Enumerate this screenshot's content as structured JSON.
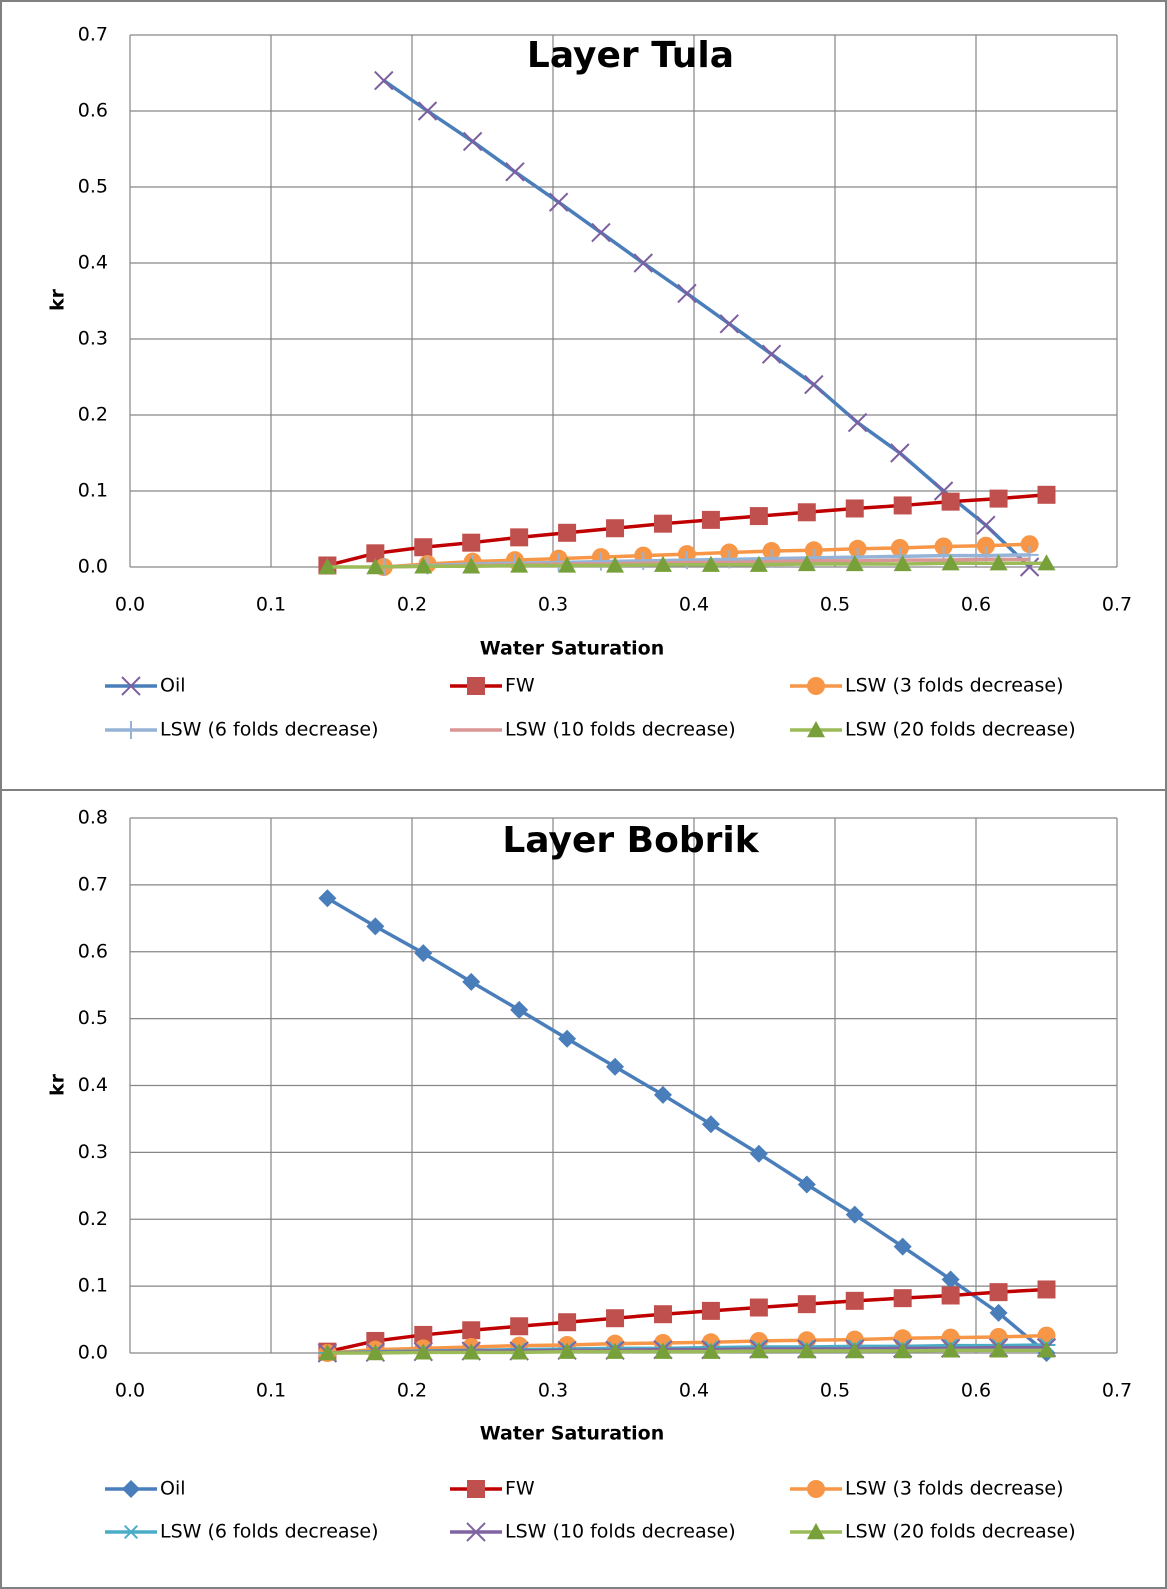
{
  "chart_data": [
    {
      "type": "line",
      "title": "Layer Tula",
      "x_label": "Water Saturation",
      "y_label": "kr",
      "xlim": [
        0,
        0.7
      ],
      "xticks": [
        {
          "value": 0,
          "label": "0.0"
        },
        0.1,
        0.2,
        0.3,
        0.4,
        0.5,
        0.6,
        0.7
      ],
      "ylim": [
        0,
        0.7
      ],
      "yticks": [
        {
          "value": 0,
          "label": "0.0"
        },
        0.1,
        0.2,
        0.3,
        0.4,
        0.5,
        0.6,
        0.7
      ],
      "grid": true,
      "legend_position": "bottom",
      "series": [
        {
          "name": "Oil",
          "color": "#4a7ebb",
          "marker": "x",
          "marker_color": "#7d5fa0",
          "x": [
            0.18,
            0.211,
            0.243,
            0.273,
            0.304,
            0.334,
            0.364,
            0.395,
            0.425,
            0.455,
            0.485,
            0.516,
            0.546,
            0.577,
            0.607,
            0.638
          ],
          "values": [
            0.64,
            0.6,
            0.56,
            0.52,
            0.48,
            0.44,
            0.4,
            0.36,
            0.32,
            0.28,
            0.24,
            0.19,
            0.15,
            0.1,
            0.055,
            0.0
          ]
        },
        {
          "name": "FW",
          "color": "#c00000",
          "marker": "square",
          "marker_color": "#c0504d",
          "x": [
            0.14,
            0.174,
            0.208,
            0.242,
            0.276,
            0.31,
            0.344,
            0.378,
            0.412,
            0.446,
            0.48,
            0.514,
            0.548,
            0.582,
            0.616,
            0.65
          ],
          "values": [
            0.002,
            0.018,
            0.026,
            0.032,
            0.039,
            0.045,
            0.051,
            0.057,
            0.062,
            0.067,
            0.072,
            0.077,
            0.081,
            0.086,
            0.09,
            0.095
          ]
        },
        {
          "name": "LSW (3 folds decrease)",
          "color": "#f79646",
          "marker": "circle",
          "marker_color": "#f79646",
          "x": [
            0.18,
            0.211,
            0.243,
            0.273,
            0.304,
            0.334,
            0.364,
            0.395,
            0.425,
            0.455,
            0.485,
            0.516,
            0.546,
            0.577,
            0.607,
            0.638
          ],
          "values": [
            0.0,
            0.004,
            0.007,
            0.009,
            0.011,
            0.013,
            0.015,
            0.017,
            0.019,
            0.021,
            0.022,
            0.024,
            0.025,
            0.027,
            0.028,
            0.03
          ]
        },
        {
          "name": "LSW (6 folds decrease)",
          "color": "#95b3d7",
          "marker": "plus",
          "marker_color": "#95b3d7",
          "x": [
            0.18,
            0.211,
            0.243,
            0.273,
            0.304,
            0.334,
            0.364,
            0.395,
            0.425,
            0.455,
            0.485,
            0.516,
            0.546,
            0.577,
            0.607,
            0.638
          ],
          "values": [
            0.0,
            0.002,
            0.004,
            0.005,
            0.006,
            0.007,
            0.008,
            0.009,
            0.01,
            0.011,
            0.012,
            0.013,
            0.014,
            0.015,
            0.015,
            0.016
          ]
        },
        {
          "name": "LSW (10 folds decrease)",
          "color": "#d99694",
          "marker": "none",
          "marker_color": "#d99694",
          "x": [
            0.18,
            0.211,
            0.243,
            0.273,
            0.304,
            0.334,
            0.364,
            0.395,
            0.425,
            0.455,
            0.485,
            0.516,
            0.546,
            0.577,
            0.607,
            0.638
          ],
          "values": [
            0.0,
            0.001,
            0.002,
            0.003,
            0.004,
            0.004,
            0.005,
            0.006,
            0.006,
            0.007,
            0.008,
            0.008,
            0.009,
            0.009,
            0.01,
            0.01
          ]
        },
        {
          "name": "LSW (20 folds decrease)",
          "color": "#9bbb59",
          "marker": "triangle",
          "marker_color": "#77a03a",
          "x": [
            0.14,
            0.174,
            0.208,
            0.242,
            0.276,
            0.31,
            0.344,
            0.378,
            0.412,
            0.446,
            0.48,
            0.514,
            0.548,
            0.582,
            0.616,
            0.65
          ],
          "values": [
            0.0,
            0.0,
            0.001,
            0.001,
            0.002,
            0.002,
            0.002,
            0.003,
            0.003,
            0.003,
            0.004,
            0.004,
            0.004,
            0.005,
            0.005,
            0.005
          ]
        }
      ]
    },
    {
      "type": "line",
      "title": "Layer Bobrik",
      "x_label": "Water Saturation",
      "y_label": "kr",
      "xlim": [
        0,
        0.7
      ],
      "xticks": [
        {
          "value": 0,
          "label": "0.0"
        },
        0.1,
        0.2,
        0.3,
        0.4,
        0.5,
        0.6,
        0.7
      ],
      "ylim": [
        0,
        0.8
      ],
      "yticks": [
        {
          "value": 0,
          "label": "0.0"
        },
        0.1,
        0.2,
        0.3,
        0.4,
        0.5,
        0.6,
        0.7,
        0.8
      ],
      "grid": true,
      "legend_position": "bottom",
      "series": [
        {
          "name": "Oil",
          "color": "#4a7ebb",
          "marker": "diamond",
          "marker_color": "#4a7ebb",
          "x": [
            0.14,
            0.174,
            0.208,
            0.242,
            0.276,
            0.31,
            0.344,
            0.378,
            0.412,
            0.446,
            0.48,
            0.514,
            0.548,
            0.582,
            0.616,
            0.65
          ],
          "values": [
            0.68,
            0.638,
            0.598,
            0.555,
            0.513,
            0.47,
            0.428,
            0.386,
            0.342,
            0.298,
            0.252,
            0.207,
            0.159,
            0.11,
            0.06,
            0.0
          ]
        },
        {
          "name": "FW",
          "color": "#c00000",
          "marker": "square",
          "marker_color": "#c0504d",
          "x": [
            0.14,
            0.174,
            0.208,
            0.242,
            0.276,
            0.31,
            0.344,
            0.378,
            0.412,
            0.446,
            0.48,
            0.514,
            0.548,
            0.582,
            0.616,
            0.65
          ],
          "values": [
            0.002,
            0.018,
            0.027,
            0.034,
            0.04,
            0.046,
            0.052,
            0.058,
            0.063,
            0.068,
            0.073,
            0.078,
            0.082,
            0.086,
            0.091,
            0.095
          ]
        },
        {
          "name": "LSW (3 folds decrease)",
          "color": "#f79646",
          "marker": "circle",
          "marker_color": "#f79646",
          "x": [
            0.14,
            0.174,
            0.208,
            0.242,
            0.276,
            0.31,
            0.344,
            0.378,
            0.412,
            0.446,
            0.48,
            0.514,
            0.548,
            0.582,
            0.616,
            0.65
          ],
          "values": [
            0.0,
            0.005,
            0.007,
            0.009,
            0.011,
            0.012,
            0.014,
            0.015,
            0.016,
            0.018,
            0.019,
            0.02,
            0.022,
            0.023,
            0.024,
            0.026
          ]
        },
        {
          "name": "LSW (6 folds decrease)",
          "color": "#4bacc6",
          "marker": "star",
          "marker_color": "#4bacc6",
          "x": [
            0.14,
            0.174,
            0.208,
            0.242,
            0.276,
            0.31,
            0.344,
            0.378,
            0.412,
            0.446,
            0.48,
            0.514,
            0.548,
            0.582,
            0.616,
            0.65
          ],
          "values": [
            0.0,
            0.002,
            0.003,
            0.004,
            0.005,
            0.006,
            0.007,
            0.007,
            0.008,
            0.009,
            0.009,
            0.01,
            0.01,
            0.011,
            0.011,
            0.012
          ]
        },
        {
          "name": "LSW (10 folds decrease)",
          "color": "#8064a2",
          "marker": "x",
          "marker_color": "#8064a2",
          "x": [
            0.14,
            0.174,
            0.208,
            0.242,
            0.276,
            0.31,
            0.344,
            0.378,
            0.412,
            0.446,
            0.48,
            0.514,
            0.548,
            0.582,
            0.616,
            0.65
          ],
          "values": [
            0.0,
            0.001,
            0.002,
            0.003,
            0.003,
            0.004,
            0.004,
            0.005,
            0.005,
            0.006,
            0.006,
            0.006,
            0.007,
            0.007,
            0.008,
            0.008
          ]
        },
        {
          "name": "LSW (20 folds decrease)",
          "color": "#9bbb59",
          "marker": "triangle",
          "marker_color": "#77a03a",
          "x": [
            0.14,
            0.174,
            0.208,
            0.242,
            0.276,
            0.31,
            0.344,
            0.378,
            0.412,
            0.446,
            0.48,
            0.514,
            0.548,
            0.582,
            0.616,
            0.65
          ],
          "values": [
            0.0,
            0.0,
            0.001,
            0.001,
            0.001,
            0.002,
            0.002,
            0.002,
            0.002,
            0.003,
            0.003,
            0.003,
            0.003,
            0.004,
            0.004,
            0.004
          ]
        }
      ]
    }
  ]
}
